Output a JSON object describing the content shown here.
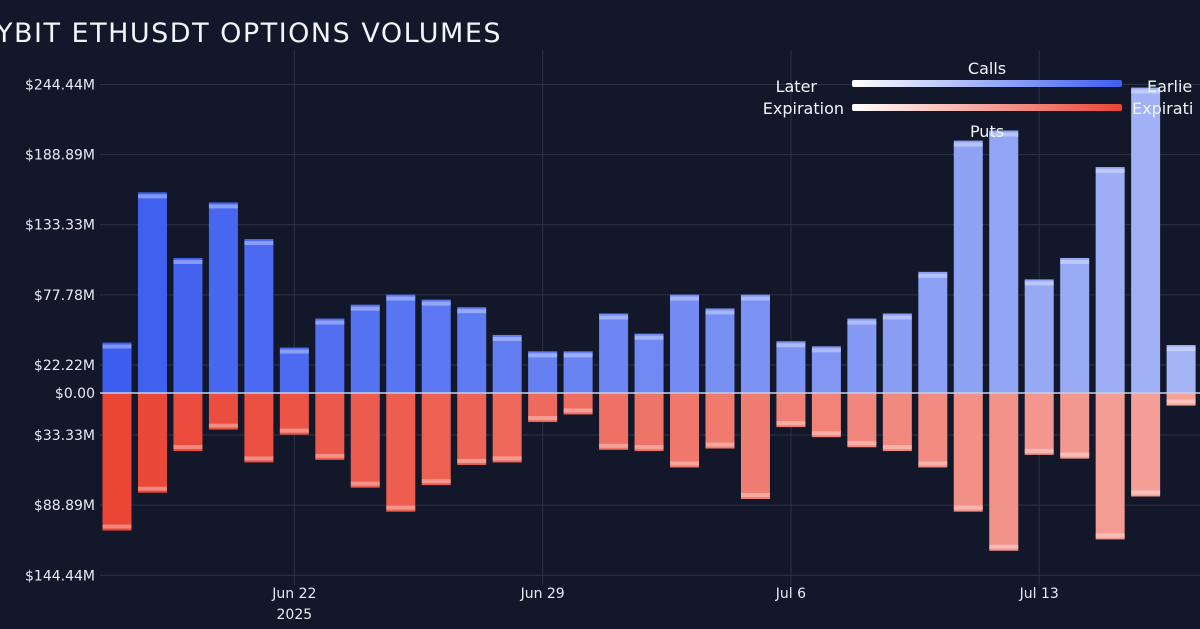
{
  "chart_data": {
    "type": "bar",
    "title": "YBIT ETHUSDT OPTIONS VOLUMES",
    "xlabel": "",
    "ylabel": "",
    "x_ticks": [
      {
        "date": "2025-06-22",
        "label": "Jun 22",
        "sublabel": "2025"
      },
      {
        "date": "2025-06-29",
        "label": "Jun 29"
      },
      {
        "date": "2025-07-06",
        "label": "Jul 6"
      },
      {
        "date": "2025-07-13",
        "label": "Jul 13"
      }
    ],
    "y_ticks": [
      {
        "value": 244.44,
        "label": "$244.44M"
      },
      {
        "value": 188.89,
        "label": "$188.89M"
      },
      {
        "value": 133.33,
        "label": "$133.33M"
      },
      {
        "value": 77.78,
        "label": "$77.78M"
      },
      {
        "value": 22.22,
        "label": "$22.22M"
      },
      {
        "value": 0,
        "label": "$0.00"
      },
      {
        "value": -33.33,
        "label": "$33.33M"
      },
      {
        "value": -88.89,
        "label": "$88.89M"
      },
      {
        "value": -144.44,
        "label": "$144.44M"
      }
    ],
    "ylim": [
      -160,
      250
    ],
    "xlim": [
      "2025-06-16",
      "2025-07-17"
    ],
    "grid": true,
    "dates": [
      "2025-06-17",
      "2025-06-18",
      "2025-06-19",
      "2025-06-20",
      "2025-06-21",
      "2025-06-22",
      "2025-06-23",
      "2025-06-24",
      "2025-06-25",
      "2025-06-26",
      "2025-06-27",
      "2025-06-28",
      "2025-06-29",
      "2025-06-30",
      "2025-07-01",
      "2025-07-02",
      "2025-07-03",
      "2025-07-04",
      "2025-07-05",
      "2025-07-06",
      "2025-07-07",
      "2025-07-08",
      "2025-07-09",
      "2025-07-10",
      "2025-07-11",
      "2025-07-12",
      "2025-07-13",
      "2025-07-14",
      "2025-07-15",
      "2025-07-16",
      "2025-07-17"
    ],
    "series": [
      {
        "name": "Calls",
        "color": "#3d5ef0",
        "values": [
          40,
          159,
          107,
          151,
          122,
          36,
          59,
          70,
          78,
          74,
          68,
          46,
          33,
          33,
          63,
          47,
          78,
          67,
          78,
          41,
          37,
          59,
          63,
          96,
          200,
          208,
          90,
          107,
          179,
          242,
          38
        ]
      },
      {
        "name": "Puts",
        "color": "#ea4535",
        "values": [
          -109,
          -79,
          -46,
          -29,
          -55,
          -33,
          -53,
          -75,
          -94,
          -73,
          -57,
          -55,
          -23,
          -17,
          -45,
          -46,
          -59,
          -44,
          -84,
          -27,
          -35,
          -43,
          -46,
          -59,
          -94,
          -125,
          -49,
          -52,
          -116,
          -82,
          -10
        ]
      }
    ],
    "legend": {
      "placement": "top-right",
      "left_label_1": "Later",
      "left_label_2": "Expiration",
      "right_label_1": "Earlie",
      "right_label_2": "Expirati",
      "calls_label": "Calls",
      "puts_label": "Puts",
      "calls_gradient": [
        "#ffffff",
        "#3d5ef0"
      ],
      "puts_gradient": [
        "#ffffff",
        "#ea4535"
      ]
    }
  }
}
